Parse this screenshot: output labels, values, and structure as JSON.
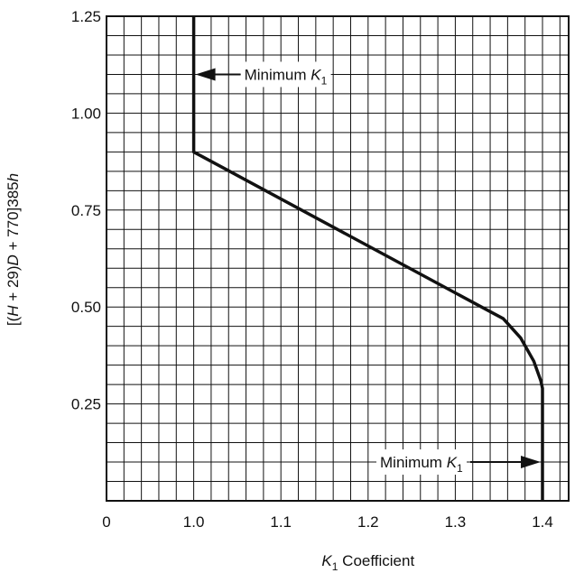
{
  "chart_data": {
    "type": "line",
    "xlabel_prefix": "K",
    "xlabel_sub": "1",
    "xlabel_suffix": " Coefficient",
    "ylabel_parts": [
      "[(",
      "H",
      " + 29)",
      "D",
      " + 770]385",
      "h"
    ],
    "xlim": [
      0.9,
      1.43
    ],
    "ylim": [
      0,
      1.25
    ],
    "x_origin_label": "0",
    "x_ticks": [
      {
        "value": 1.0,
        "label": "1.0"
      },
      {
        "value": 1.1,
        "label": "1.1"
      },
      {
        "value": 1.2,
        "label": "1.2"
      },
      {
        "value": 1.3,
        "label": "1.3"
      },
      {
        "value": 1.4,
        "label": "1.4"
      }
    ],
    "y_ticks": [
      {
        "value": 0.25,
        "label": "0.25"
      },
      {
        "value": 0.5,
        "label": "0.50"
      },
      {
        "value": 0.75,
        "label": "0.75"
      },
      {
        "value": 1.0,
        "label": "1.00"
      },
      {
        "value": 1.25,
        "label": "1.25"
      }
    ],
    "grid": true,
    "grid_x_step": 0.02,
    "grid_y_step": 0.05,
    "series": [
      {
        "x": [
          1.0,
          1.0,
          1.33,
          1.355,
          1.375,
          1.39,
          1.398,
          1.4,
          1.4
        ],
        "y": [
          1.25,
          0.9,
          0.5,
          0.47,
          0.42,
          0.36,
          0.31,
          0.29,
          0.0
        ]
      }
    ],
    "annotations": [
      {
        "text": "Minimum",
        "sym": "K",
        "sub": "1",
        "arrow": "left",
        "target_x": 1.0,
        "y": 1.1
      },
      {
        "text": "Minimum",
        "sym": "K",
        "sub": "1",
        "arrow": "right",
        "target_x": 1.4,
        "y": 0.1
      }
    ],
    "line_color": "#111111",
    "grid_color": "#111111"
  }
}
